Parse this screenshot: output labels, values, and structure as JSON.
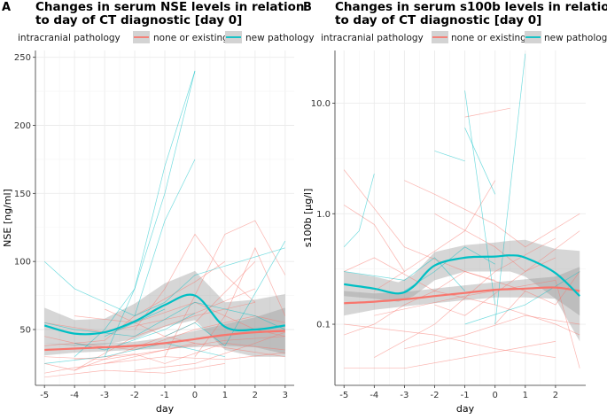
{
  "colors": {
    "existing": "#F8766D",
    "new": "#00BFC4",
    "band": "#999999",
    "grid": "#ebebeb",
    "axis": "#333333"
  },
  "chart_data": [
    {
      "panel_label": "A",
      "type": "line",
      "title_lines": [
        "Changes in serum NSE levels in relation",
        "to day of CT diagnostic [day 0]"
      ],
      "legend_title": "intracranial pathology",
      "legend_entries": [
        "none or existing",
        "new pathology"
      ],
      "xlabel": "day",
      "ylabel": "NSE [ng/ml]",
      "xlim": [
        -5.3,
        3.3
      ],
      "ylim": [
        9,
        255
      ],
      "yscale": "linear",
      "x_ticks": [
        -5,
        -4,
        -3,
        -2,
        -1,
        0,
        1,
        2,
        3
      ],
      "x_tick_labels": [
        "-5",
        "-4",
        "-3",
        "-2",
        "-1",
        "0",
        "1",
        "2",
        "3"
      ],
      "y_ticks": [
        50,
        100,
        150,
        200,
        250
      ],
      "y_tick_labels": [
        "50",
        "100",
        "150",
        "200",
        "250"
      ],
      "series": [
        {
          "name": "none or existing",
          "color_key": "existing",
          "smooth": {
            "x": [
              -5,
              -4,
              -3,
              -2,
              -1,
              0,
              1,
              2,
              3
            ],
            "y": [
              35,
              36,
              37,
              38,
              40,
              43,
              46,
              48,
              49
            ],
            "lower": [
              31,
              33,
              34,
              35,
              36,
              37,
              38,
              37,
              32
            ],
            "upper": [
              40,
              39,
              40,
              41,
              44,
              49,
              54,
              59,
              66
            ]
          },
          "traces": [
            {
              "x": [
                -5,
                -4,
                -3,
                -2,
                -1,
                0
              ],
              "y": [
                18,
                22,
                25,
                30,
                35,
                40
              ]
            },
            {
              "x": [
                -5,
                -3,
                -1,
                1,
                3
              ],
              "y": [
                30,
                28,
                35,
                42,
                45
              ]
            },
            {
              "x": [
                -4,
                -2,
                0,
                2
              ],
              "y": [
                20,
                45,
                60,
                70
              ]
            },
            {
              "x": [
                -5,
                -4,
                -2,
                0,
                2,
                3
              ],
              "y": [
                45,
                40,
                35,
                50,
                60,
                55
              ]
            },
            {
              "x": [
                -3,
                -1,
                1,
                3
              ],
              "y": [
                25,
                30,
                28,
                33
              ]
            },
            {
              "x": [
                -2,
                -1,
                0,
                1,
                2
              ],
              "y": [
                50,
                80,
                120,
                90,
                70
              ]
            },
            {
              "x": [
                -5,
                -3,
                -1,
                1
              ],
              "y": [
                15,
                20,
                18,
                25
              ]
            },
            {
              "x": [
                -1,
                1,
                2,
                3
              ],
              "y": [
                30,
                120,
                130,
                90
              ]
            },
            {
              "x": [
                -4,
                -2,
                0,
                2,
                3
              ],
              "y": [
                60,
                55,
                70,
                50,
                45
              ]
            },
            {
              "x": [
                -5,
                -3,
                -2,
                0,
                1
              ],
              "y": [
                38,
                42,
                60,
                85,
                100
              ]
            },
            {
              "x": [
                -2,
                0,
                2,
                3
              ],
              "y": [
                20,
                25,
                40,
                48
              ]
            },
            {
              "x": [
                -5,
                -4,
                -1,
                0,
                3
              ],
              "y": [
                25,
                20,
                45,
                40,
                30
              ]
            },
            {
              "x": [
                -3,
                -1,
                0,
                2
              ],
              "y": [
                65,
                45,
                55,
                100
              ]
            },
            {
              "x": [
                0,
                1,
                2,
                3
              ],
              "y": [
                30,
                60,
                110,
                60
              ]
            },
            {
              "x": [
                -4,
                -2,
                -1,
                1,
                3
              ],
              "y": [
                28,
                32,
                25,
                40,
                35
              ]
            },
            {
              "x": [
                -5,
                -3,
                0,
                2
              ],
              "y": [
                55,
                48,
                62,
                80
              ]
            }
          ]
        },
        {
          "name": "new pathology",
          "color_key": "new",
          "smooth": {
            "x": [
              -5,
              -4,
              -3,
              -2,
              -1,
              0,
              1,
              2,
              3
            ],
            "y": [
              53,
              47,
              48,
              56,
              68,
              75,
              52,
              50,
              53
            ],
            "lower": [
              40,
              38,
              39,
              43,
              52,
              57,
              35,
              30,
              30
            ],
            "upper": [
              66,
              57,
              58,
              69,
              84,
              93,
              70,
              72,
              76
            ]
          },
          "traces": [
            {
              "x": [
                -4,
                -3,
                -2,
                -1,
                0
              ],
              "y": [
                30,
                50,
                80,
                150,
                240
              ]
            },
            {
              "x": [
                -3,
                -2,
                -1,
                0
              ],
              "y": [
                30,
                80,
                170,
                240
              ]
            },
            {
              "x": [
                -2,
                -1,
                0
              ],
              "y": [
                60,
                130,
                175
              ]
            },
            {
              "x": [
                -5,
                -4,
                -2,
                -1,
                0,
                3
              ],
              "y": [
                100,
                80,
                60,
                70,
                90,
                110
              ]
            },
            {
              "x": [
                -5,
                -4,
                -2,
                0,
                2,
                3
              ],
              "y": [
                55,
                50,
                45,
                70,
                60,
                50
              ]
            },
            {
              "x": [
                -4,
                -3,
                -1,
                0
              ],
              "y": [
                40,
                35,
                50,
                62
              ]
            },
            {
              "x": [
                -5,
                -3,
                -1,
                1
              ],
              "y": [
                25,
                30,
                40,
                30
              ]
            },
            {
              "x": [
                -1,
                0,
                1,
                3
              ],
              "y": [
                45,
                55,
                38,
                115
              ]
            },
            {
              "x": [
                -3,
                -2,
                -1
              ],
              "y": [
                45,
                55,
                65
              ]
            }
          ]
        }
      ]
    },
    {
      "panel_label": "B",
      "type": "line",
      "title_lines": [
        "Changes in serum s100b levels in relatio",
        "to day of CT diagnostic [day 0]"
      ],
      "legend_title": "intracranial pathology",
      "legend_entries": [
        "none or existing",
        "new pathology"
      ],
      "xlabel": "day",
      "ylabel": "s100b [µg/l]",
      "xlim": [
        -5.3,
        3.0
      ],
      "ylim": [
        0.028,
        30
      ],
      "yscale": "log10",
      "x_ticks": [
        -5,
        -4,
        -3,
        -2,
        -1,
        0,
        1,
        2
      ],
      "x_tick_labels": [
        "-5",
        "-4",
        "-3",
        "-2",
        "-1",
        "0",
        "1",
        "2"
      ],
      "y_ticks": [
        0.1,
        1.0,
        10.0
      ],
      "y_tick_labels": [
        "0.1",
        "1.0",
        "10.0"
      ],
      "series": [
        {
          "name": "none or existing",
          "color_key": "existing",
          "smooth": {
            "x": [
              -5,
              -4,
              -3,
              -2,
              -1,
              0,
              1,
              2,
              2.8
            ],
            "y": [
              0.155,
              0.16,
              0.168,
              0.18,
              0.192,
              0.205,
              0.21,
              0.215,
              0.2
            ],
            "lower": [
              0.12,
              0.135,
              0.145,
              0.155,
              0.165,
              0.175,
              0.175,
              0.17,
              0.12
            ],
            "upper": [
              0.2,
              0.19,
              0.195,
              0.21,
              0.225,
              0.24,
              0.255,
              0.27,
              0.33
            ]
          },
          "traces": [
            {
              "x": [
                -5,
                -4,
                -3,
                -2,
                -1,
                0
              ],
              "y": [
                0.08,
                0.1,
                0.15,
                0.2,
                0.3,
                0.25
              ]
            },
            {
              "x": [
                -5,
                -3,
                -1,
                1
              ],
              "y": [
                2.5,
                0.5,
                0.3,
                0.2
              ]
            },
            {
              "x": [
                -4,
                -2,
                0,
                2
              ],
              "y": [
                0.05,
                0.1,
                0.3,
                0.6
              ]
            },
            {
              "x": [
                -5,
                -4,
                -2,
                0,
                2,
                2.8
              ],
              "y": [
                0.3,
                0.4,
                0.2,
                0.15,
                0.1,
                0.08
              ]
            },
            {
              "x": [
                -1,
                0.5
              ],
              "y": [
                7.5,
                9
              ]
            },
            {
              "x": [
                -3,
                -1,
                1,
                2.8
              ],
              "y": [
                0.06,
                0.08,
                0.12,
                0.1
              ]
            },
            {
              "x": [
                -2,
                0,
                1,
                2
              ],
              "y": [
                1.0,
                0.5,
                0.3,
                0.4
              ]
            },
            {
              "x": [
                -5,
                -3,
                -1,
                2
              ],
              "y": [
                0.04,
                0.04,
                0.05,
                0.07
              ]
            },
            {
              "x": [
                -4,
                -3,
                -1,
                0
              ],
              "y": [
                0.2,
                0.3,
                0.7,
                2.0
              ]
            },
            {
              "x": [
                -5,
                -4,
                -3
              ],
              "y": [
                1.2,
                0.8,
                0.3
              ]
            },
            {
              "x": [
                0,
                1,
                2,
                2.8
              ],
              "y": [
                0.1,
                0.2,
                0.15,
                0.3
              ]
            },
            {
              "x": [
                -2,
                -1,
                1,
                2.8
              ],
              "y": [
                0.15,
                0.12,
                0.3,
                0.7
              ]
            },
            {
              "x": [
                -5,
                -2,
                0,
                2
              ],
              "y": [
                0.1,
                0.08,
                0.06,
                0.05
              ]
            },
            {
              "x": [
                -3,
                -2,
                0,
                1,
                2.8
              ],
              "y": [
                2.0,
                1.5,
                0.8,
                0.5,
                1.0
              ]
            },
            {
              "x": [
                -4,
                -1,
                2,
                2.8
              ],
              "y": [
                0.12,
                0.18,
                0.25,
                0.04
              ]
            }
          ]
        },
        {
          "name": "new pathology",
          "color_key": "new",
          "smooth": {
            "x": [
              -5,
              -4,
              -3.2,
              -2.7,
              -2,
              -1,
              0,
              0.5,
              1,
              2,
              2.8
            ],
            "y": [
              0.23,
              0.21,
              0.19,
              0.22,
              0.34,
              0.4,
              0.41,
              0.42,
              0.4,
              0.29,
              0.18
            ],
            "lower": [
              0.18,
              0.17,
              0.16,
              0.18,
              0.25,
              0.3,
              0.3,
              0.3,
              0.27,
              0.17,
              0.07
            ],
            "upper": [
              0.3,
              0.27,
              0.24,
              0.28,
              0.45,
              0.52,
              0.55,
              0.57,
              0.58,
              0.48,
              0.46
            ]
          },
          "traces": [
            {
              "x": [
                0,
                1
              ],
              "y": [
                0.1,
                28
              ]
            },
            {
              "x": [
                -1,
                0
              ],
              "y": [
                13,
                0.15
              ]
            },
            {
              "x": [
                -1,
                -0.5,
                0
              ],
              "y": [
                6,
                3,
                1.5
              ]
            },
            {
              "x": [
                -2,
                -1
              ],
              "y": [
                3.7,
                3
              ]
            },
            {
              "x": [
                -5,
                -4.5,
                -4
              ],
              "y": [
                0.5,
                0.7,
                2.3
              ]
            },
            {
              "x": [
                -3,
                -2,
                -1,
                0
              ],
              "y": [
                0.2,
                0.3,
                0.5,
                0.35
              ]
            },
            {
              "x": [
                -5,
                -3,
                -2,
                -1
              ],
              "y": [
                0.3,
                0.25,
                0.4,
                0.2
              ]
            },
            {
              "x": [
                -1,
                1,
                2.8
              ],
              "y": [
                0.1,
                0.15,
                0.3
              ]
            }
          ]
        }
      ]
    }
  ]
}
